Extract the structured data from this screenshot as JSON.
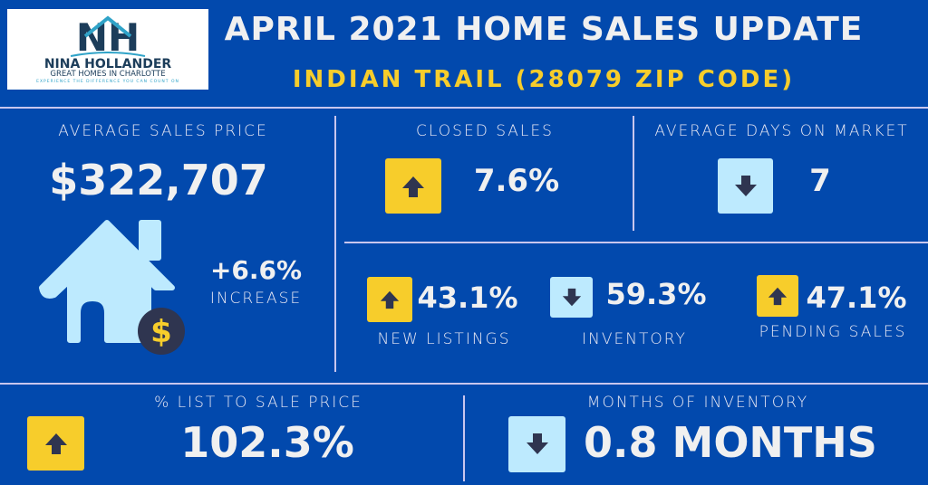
{
  "logo": {
    "monogram": "NH",
    "name": "NINA HOLLANDER",
    "tagline": "GREAT HOMES IN CHARLOTTE",
    "slogan": "EXPERIENCE THE DIFFERENCE YOU CAN COUNT ON"
  },
  "header": {
    "title": "APRIL 2021 HOME SALES UPDATE",
    "subtitle": "INDIAN TRAIL (28079 ZIP CODE)"
  },
  "colors": {
    "background": "#0249ad",
    "up": "#f7cd2b",
    "down": "#bdeafe",
    "arrow": "#2f3550",
    "accent": "#f7cd2b"
  },
  "avg_price": {
    "label": "AVERAGE SALES PRICE",
    "value": "$322,707",
    "change": "+6.6%",
    "change_label": "INCREASE",
    "icon": "house-dollar-icon"
  },
  "closed_sales": {
    "label": "CLOSED SALES",
    "value": "7.6%",
    "direction": "up"
  },
  "days_on_market": {
    "label": "AVERAGE DAYS ON MARKET",
    "value": "7",
    "direction": "down"
  },
  "new_listings": {
    "label": "NEW LISTINGS",
    "value": "43.1%",
    "direction": "up"
  },
  "inventory": {
    "label": "INVENTORY",
    "value": "59.3%",
    "direction": "down"
  },
  "pending": {
    "label": "PENDING SALES",
    "value": "47.1%",
    "direction": "up"
  },
  "list_to_sale": {
    "label": "% LIST TO SALE PRICE",
    "value": "102.3%",
    "direction": "up"
  },
  "months_inventory": {
    "label": "MONTHS OF INVENTORY",
    "value": "0.8 MONTHS",
    "direction": "down"
  }
}
